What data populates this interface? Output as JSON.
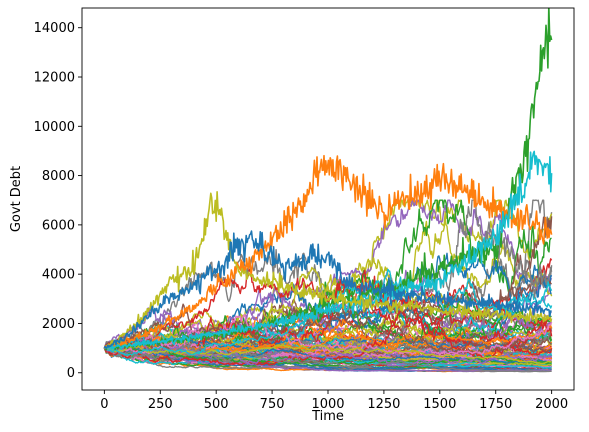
{
  "chart_data": {
    "type": "line",
    "title": "",
    "xlabel": "Time",
    "ylabel": "Govt Debt",
    "xlim": [
      -100,
      2100
    ],
    "ylim": [
      -700,
      14800
    ],
    "x_ticks": [
      0,
      250,
      500,
      750,
      1000,
      1250,
      1500,
      1750,
      2000
    ],
    "x_tick_labels": [
      "0",
      "250",
      "500",
      "750",
      "1000",
      "1250",
      "1500",
      "1750",
      "2000"
    ],
    "y_ticks": [
      0,
      2000,
      4000,
      6000,
      8000,
      10000,
      12000,
      14000
    ],
    "y_tick_labels": [
      "0",
      "2000",
      "4000",
      "6000",
      "8000",
      "10000",
      "12000",
      "14000"
    ],
    "grid": false,
    "legend": "none",
    "series_count_shown": 100,
    "start_value": 1000,
    "n_steps": 2000,
    "colors": [
      "#1f77b4",
      "#ff7f0e",
      "#2ca02c",
      "#d62728",
      "#9467bd",
      "#8c564b",
      "#e377c2",
      "#7f7f7f",
      "#bcbd22",
      "#17becf"
    ],
    "highlighted_series": [
      {
        "color": "#2ca02c",
        "description_points": [
          [
            0,
            1000
          ],
          [
            500,
            1500
          ],
          [
            1000,
            2800
          ],
          [
            1500,
            4200
          ],
          [
            1750,
            5200
          ],
          [
            1900,
            9500
          ],
          [
            1975,
            14100
          ],
          [
            2000,
            13500
          ]
        ]
      },
      {
        "color": "#ff7f0e",
        "description_points": [
          [
            0,
            1000
          ],
          [
            500,
            3500
          ],
          [
            900,
            7200
          ],
          [
            990,
            8600
          ],
          [
            1250,
            6500
          ],
          [
            1500,
            7800
          ],
          [
            1750,
            6800
          ],
          [
            2000,
            5600
          ]
        ]
      },
      {
        "color": "#17becf",
        "description_points": [
          [
            0,
            1000
          ],
          [
            500,
            1600
          ],
          [
            1000,
            2500
          ],
          [
            1500,
            3800
          ],
          [
            1750,
            5500
          ],
          [
            1930,
            8800
          ],
          [
            2000,
            8100
          ]
        ]
      },
      {
        "color": "#bcbd22",
        "description_points": [
          [
            0,
            1000
          ],
          [
            200,
            2600
          ],
          [
            300,
            3800
          ],
          [
            380,
            4000
          ],
          [
            480,
            7100
          ],
          [
            520,
            6400
          ],
          [
            600,
            4100
          ],
          [
            1000,
            3000
          ],
          [
            2000,
            2200
          ]
        ]
      },
      {
        "color": "#1f77b4",
        "description_points": [
          [
            0,
            1000
          ],
          [
            250,
            2800
          ],
          [
            500,
            4200
          ],
          [
            650,
            5600
          ],
          [
            800,
            4300
          ],
          [
            1000,
            4800
          ],
          [
            1100,
            3500
          ],
          [
            2000,
            2500
          ]
        ]
      }
    ]
  }
}
